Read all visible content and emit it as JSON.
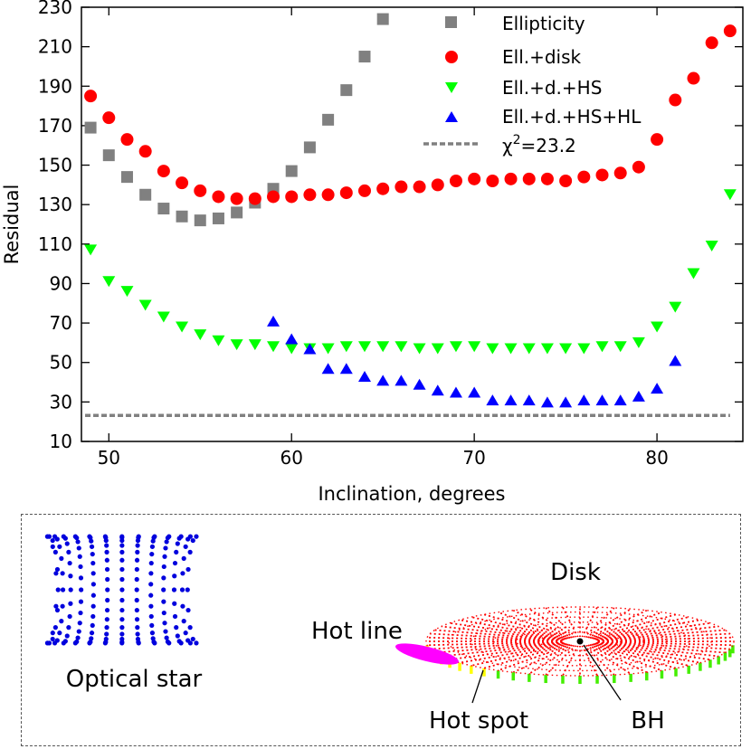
{
  "chart_data": {
    "type": "scatter",
    "xlabel": "Inclination, degrees",
    "ylabel": "Residual",
    "xlim": [
      48.5,
      84.7
    ],
    "ylim": [
      10,
      230
    ],
    "xticks": [
      50,
      60,
      70,
      80
    ],
    "yticks": [
      10,
      30,
      50,
      70,
      90,
      110,
      130,
      150,
      170,
      190,
      210,
      230
    ],
    "legend_position": "top-right",
    "series": [
      {
        "name": "Ellipticity",
        "marker": "square",
        "color": "#808080",
        "x": [
          49,
          50,
          51,
          52,
          53,
          54,
          55,
          56,
          57,
          58,
          59,
          60,
          61,
          62,
          63,
          64,
          65
        ],
        "y": [
          169,
          155,
          144,
          135,
          128,
          124,
          122,
          123,
          126,
          131,
          138,
          147,
          159,
          173,
          188,
          205,
          224
        ]
      },
      {
        "name": "Ell.+disk",
        "marker": "circle",
        "color": "#ff0000",
        "x": [
          49,
          50,
          51,
          52,
          53,
          54,
          55,
          56,
          57,
          58,
          59,
          60,
          61,
          62,
          63,
          64,
          65,
          66,
          67,
          68,
          69,
          70,
          71,
          72,
          73,
          74,
          75,
          76,
          77,
          78,
          79,
          80,
          81,
          82,
          83,
          84
        ],
        "y": [
          185,
          174,
          163,
          157,
          147,
          141,
          137,
          134,
          133,
          133,
          134,
          134,
          135,
          135,
          136,
          137,
          138,
          139,
          139,
          140,
          142,
          143,
          142,
          143,
          143,
          143,
          142,
          144,
          145,
          146,
          149,
          163,
          183,
          194,
          212,
          218
        ]
      },
      {
        "name": "Ell.+d.+HS",
        "marker": "triangle-down",
        "color": "#00ff00",
        "x": [
          49,
          50,
          51,
          52,
          53,
          54,
          55,
          56,
          57,
          58,
          59,
          60,
          61,
          62,
          63,
          64,
          65,
          66,
          67,
          68,
          69,
          70,
          71,
          72,
          73,
          74,
          75,
          76,
          77,
          78,
          79,
          80,
          81,
          82,
          83,
          84
        ],
        "y": [
          107,
          91,
          86,
          79,
          73,
          68,
          64,
          61,
          59,
          59,
          58,
          57,
          57,
          57,
          58,
          58,
          58,
          58,
          57,
          57,
          58,
          58,
          57,
          57,
          57,
          57,
          57,
          57,
          58,
          58,
          60,
          68,
          78,
          95,
          109,
          135
        ]
      },
      {
        "name": "Ell.+d.+HS+HL",
        "marker": "triangle-up",
        "color": "#0000ff",
        "x": [
          59,
          60,
          61,
          62,
          63,
          64,
          65,
          66,
          67,
          68,
          69,
          70,
          71,
          72,
          73,
          74,
          75,
          76,
          77,
          78,
          79,
          80,
          81
        ],
        "y": [
          71,
          62,
          57,
          47,
          47,
          43,
          41,
          41,
          39,
          36,
          35,
          35,
          31,
          31,
          31,
          30,
          30,
          31,
          31,
          31,
          33,
          37,
          51
        ]
      },
      {
        "name": "χ²=23.2",
        "marker": "dashed-line",
        "color": "#808080",
        "x": [
          48.7,
          84
        ],
        "y": [
          23.2,
          23.2
        ]
      }
    ]
  },
  "legend": {
    "ellipticity": "Ellipticity",
    "ell_disk": "Ell.+disk",
    "ell_d_hs": "Ell.+d.+HS",
    "ell_d_hs_hl": "Ell.+d.+HS+HL",
    "chi_symbol": "χ",
    "chi_sup": "2",
    "chi_value": "=23.2"
  },
  "diagram": {
    "optical_star": "Optical star",
    "disk": "Disk",
    "hot_line": "Hot line",
    "hot_spot": "Hot spot",
    "bh": "BH",
    "colors": {
      "star": "#0000dd",
      "disk": "#ff0000",
      "disk_rim": "#44ee00",
      "hot_line": "#ff00ff",
      "hot_spot": "#ffff00"
    }
  }
}
